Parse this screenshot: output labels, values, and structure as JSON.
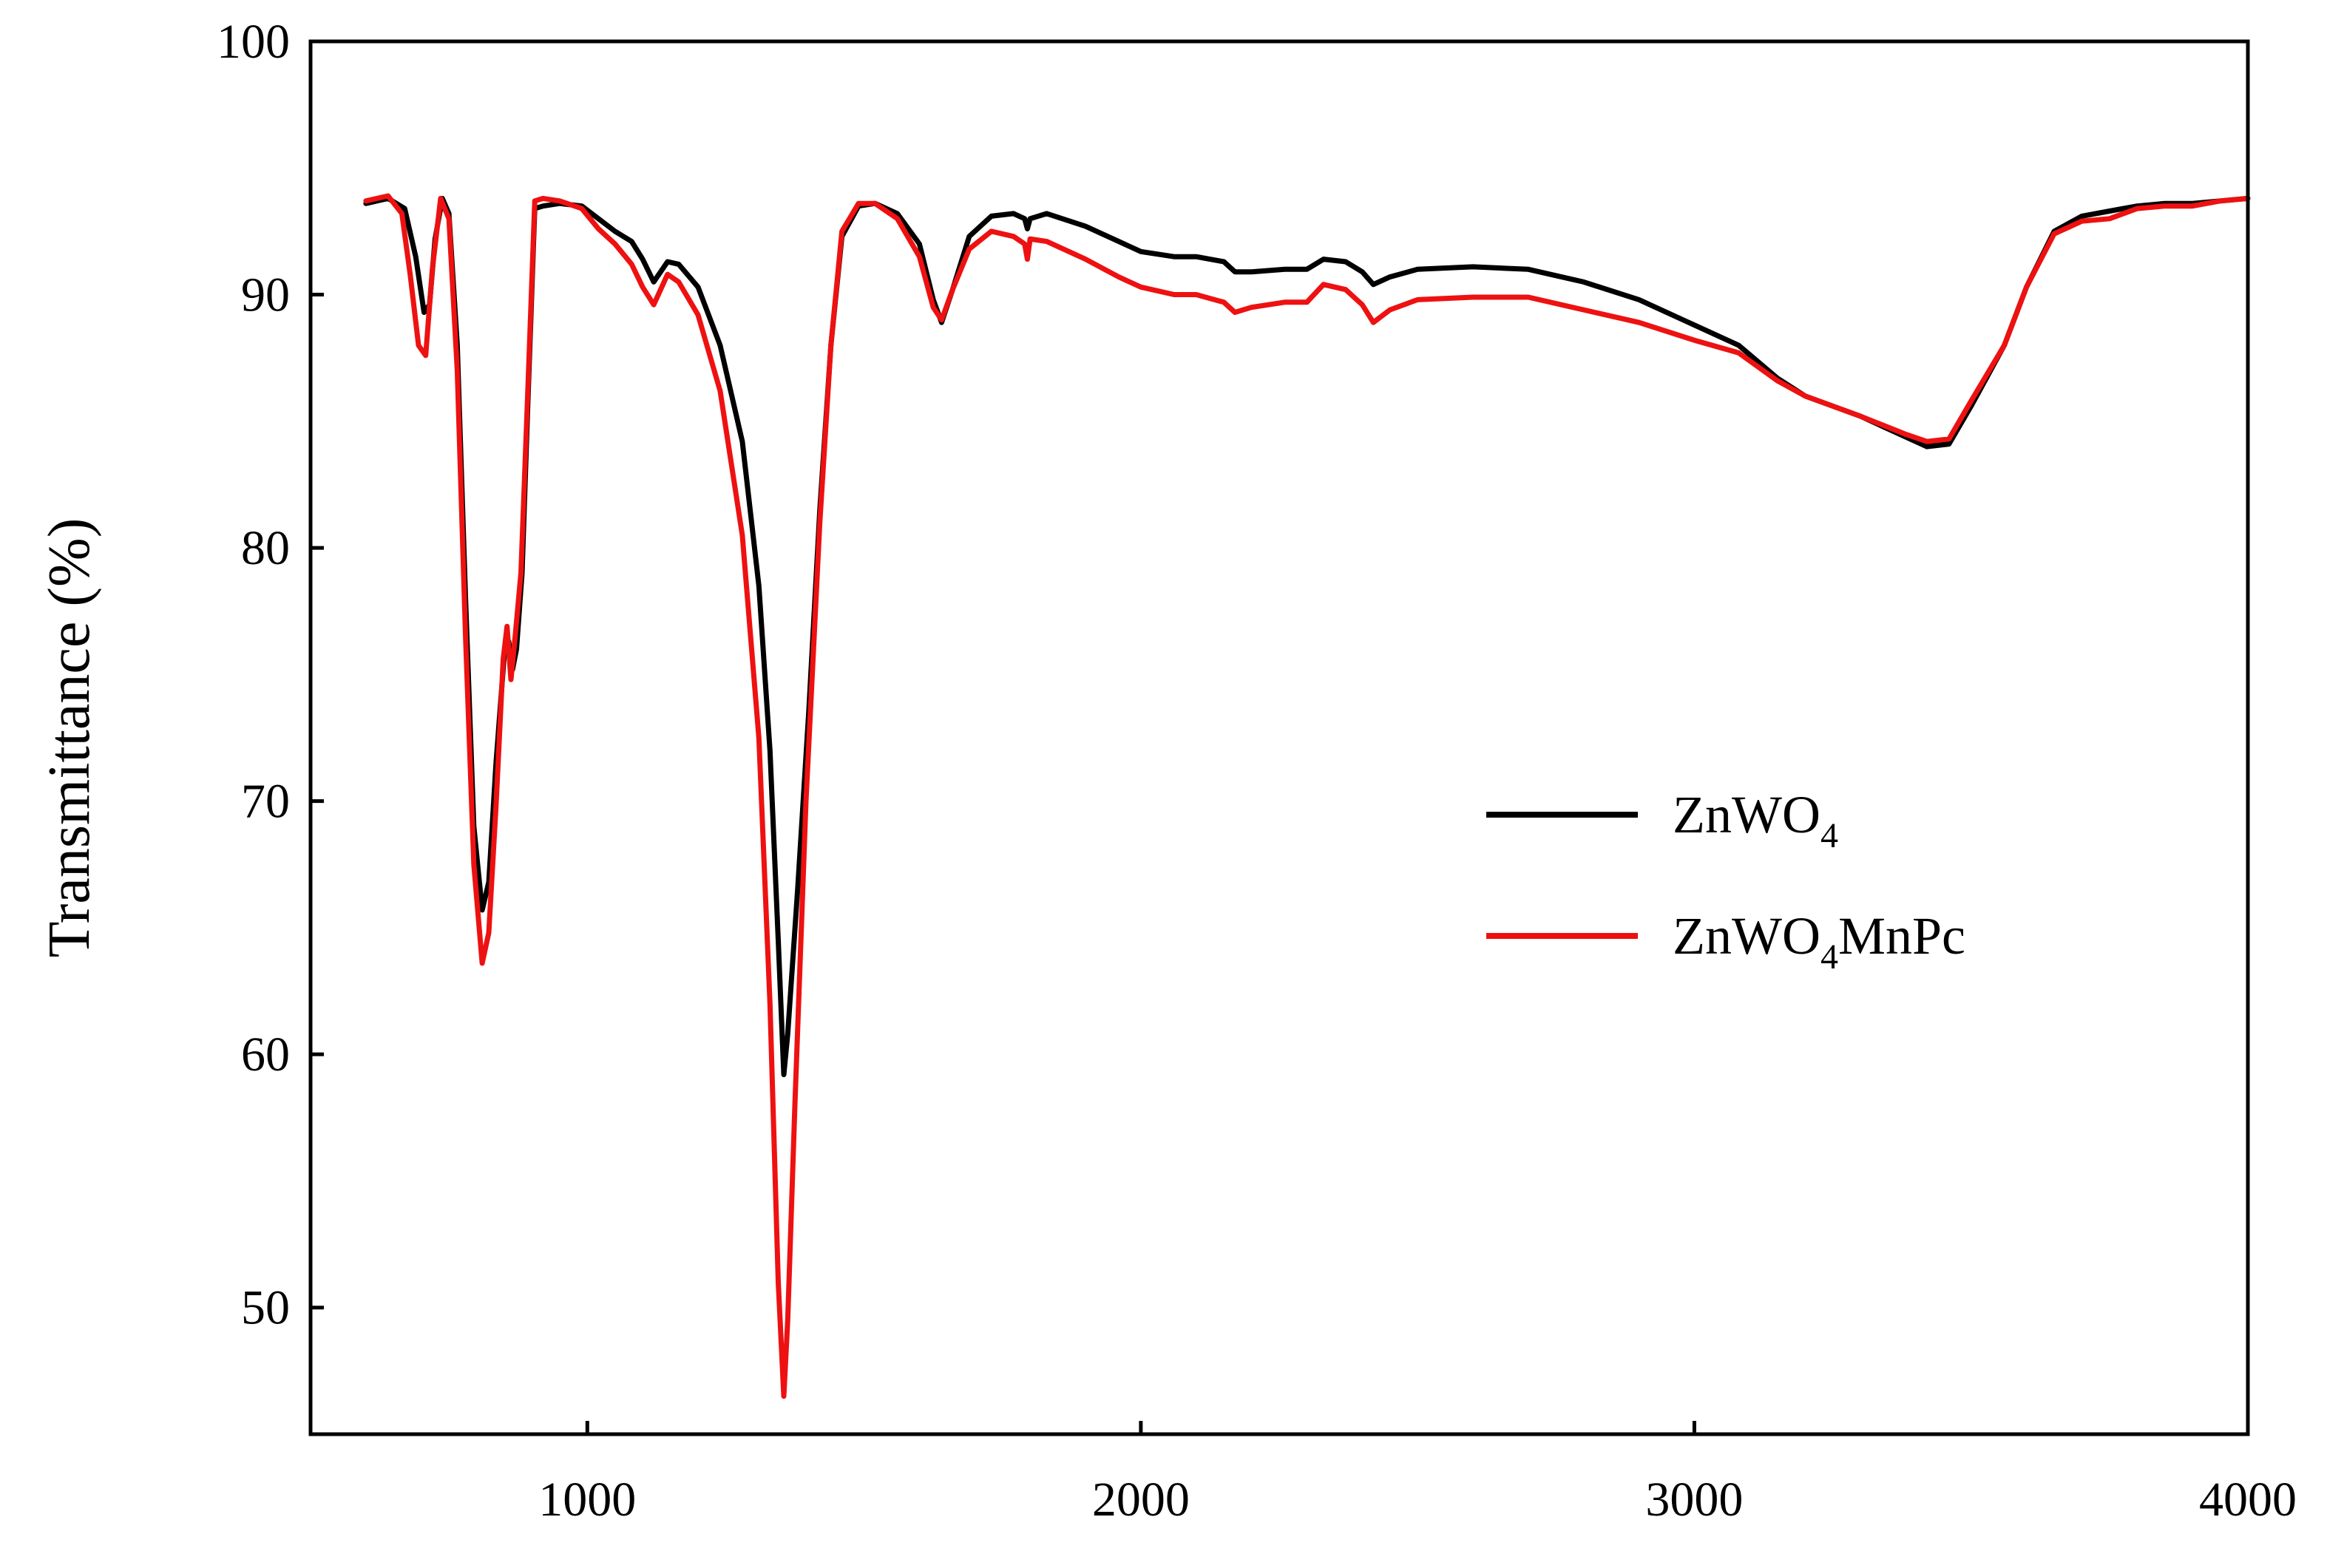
{
  "chart_data": {
    "type": "line",
    "title": "",
    "xlabel": "",
    "ylabel": "Transmittance (%)",
    "xlim": [
      500,
      4000
    ],
    "ylim": [
      45,
      100
    ],
    "x_ticks": [
      1000,
      2000,
      3000,
      4000
    ],
    "y_ticks": [
      50,
      60,
      70,
      80,
      90,
      100
    ],
    "x_tick_labels": [
      "1000",
      "2000",
      "3000",
      "4000"
    ],
    "y_tick_labels": [
      "50",
      "60",
      "70",
      "80",
      "90",
      "100"
    ],
    "grid": false,
    "legend_position": "right-middle",
    "series": [
      {
        "name": "ZnWO4",
        "legend_main": "ZnWO",
        "legend_sub": "4",
        "legend_rest": "",
        "color": "#000000",
        "points": [
          [
            600,
            93.6
          ],
          [
            640,
            93.8
          ],
          [
            670,
            93.4
          ],
          [
            690,
            91.5
          ],
          [
            705,
            89.3
          ],
          [
            715,
            89.6
          ],
          [
            725,
            92.2
          ],
          [
            738,
            93.8
          ],
          [
            750,
            93.2
          ],
          [
            765,
            88.0
          ],
          [
            780,
            78.0
          ],
          [
            795,
            69.0
          ],
          [
            810,
            65.7
          ],
          [
            822,
            66.8
          ],
          [
            835,
            71.5
          ],
          [
            850,
            75.8
          ],
          [
            858,
            76.3
          ],
          [
            865,
            75.2
          ],
          [
            872,
            76.0
          ],
          [
            882,
            79.0
          ],
          [
            893,
            86.0
          ],
          [
            905,
            93.4
          ],
          [
            920,
            93.5
          ],
          [
            950,
            93.6
          ],
          [
            990,
            93.5
          ],
          [
            1020,
            93.0
          ],
          [
            1050,
            92.5
          ],
          [
            1080,
            92.1
          ],
          [
            1100,
            91.4
          ],
          [
            1120,
            90.5
          ],
          [
            1145,
            91.3
          ],
          [
            1165,
            91.2
          ],
          [
            1200,
            90.3
          ],
          [
            1240,
            88.0
          ],
          [
            1280,
            84.2
          ],
          [
            1310,
            78.5
          ],
          [
            1330,
            72.0
          ],
          [
            1345,
            64.5
          ],
          [
            1355,
            59.2
          ],
          [
            1362,
            60.8
          ],
          [
            1380,
            66.5
          ],
          [
            1400,
            73.5
          ],
          [
            1420,
            81.5
          ],
          [
            1440,
            88.0
          ],
          [
            1460,
            92.3
          ],
          [
            1490,
            93.5
          ],
          [
            1520,
            93.6
          ],
          [
            1560,
            93.2
          ],
          [
            1600,
            92.0
          ],
          [
            1625,
            89.8
          ],
          [
            1640,
            88.9
          ],
          [
            1660,
            90.2
          ],
          [
            1690,
            92.3
          ],
          [
            1730,
            93.1
          ],
          [
            1770,
            93.2
          ],
          [
            1790,
            93.0
          ],
          [
            1795,
            92.6
          ],
          [
            1800,
            93.0
          ],
          [
            1830,
            93.2
          ],
          [
            1900,
            92.7
          ],
          [
            1960,
            92.1
          ],
          [
            2000,
            91.7
          ],
          [
            2060,
            91.5
          ],
          [
            2100,
            91.5
          ],
          [
            2150,
            91.3
          ],
          [
            2170,
            90.9
          ],
          [
            2200,
            90.9
          ],
          [
            2260,
            91.0
          ],
          [
            2300,
            91.0
          ],
          [
            2330,
            91.4
          ],
          [
            2370,
            91.3
          ],
          [
            2400,
            90.9
          ],
          [
            2420,
            90.4
          ],
          [
            2450,
            90.7
          ],
          [
            2500,
            91.0
          ],
          [
            2600,
            91.1
          ],
          [
            2700,
            91.0
          ],
          [
            2800,
            90.5
          ],
          [
            2900,
            89.8
          ],
          [
            3000,
            88.8
          ],
          [
            3080,
            88.0
          ],
          [
            3150,
            86.7
          ],
          [
            3200,
            86.0
          ],
          [
            3300,
            85.2
          ],
          [
            3380,
            84.4
          ],
          [
            3420,
            84.0
          ],
          [
            3460,
            84.1
          ],
          [
            3500,
            85.6
          ],
          [
            3560,
            88.0
          ],
          [
            3600,
            90.3
          ],
          [
            3650,
            92.5
          ],
          [
            3700,
            93.1
          ],
          [
            3750,
            93.3
          ],
          [
            3800,
            93.5
          ],
          [
            3850,
            93.6
          ],
          [
            3900,
            93.6
          ],
          [
            3950,
            93.7
          ],
          [
            4000,
            93.8
          ]
        ]
      },
      {
        "name": "ZnWO4MnPc",
        "legend_main": "ZnWO",
        "legend_sub": "4",
        "legend_rest": "MnPc",
        "color": "#ee1111",
        "points": [
          [
            600,
            93.7
          ],
          [
            640,
            93.9
          ],
          [
            665,
            93.2
          ],
          [
            680,
            90.8
          ],
          [
            695,
            88.0
          ],
          [
            708,
            87.6
          ],
          [
            720,
            91.0
          ],
          [
            735,
            93.8
          ],
          [
            750,
            93.0
          ],
          [
            765,
            87.0
          ],
          [
            780,
            76.5
          ],
          [
            795,
            67.5
          ],
          [
            810,
            63.6
          ],
          [
            822,
            64.8
          ],
          [
            835,
            69.8
          ],
          [
            848,
            75.6
          ],
          [
            855,
            76.9
          ],
          [
            862,
            74.8
          ],
          [
            870,
            76.6
          ],
          [
            880,
            79.0
          ],
          [
            893,
            86.5
          ],
          [
            905,
            93.7
          ],
          [
            920,
            93.8
          ],
          [
            950,
            93.7
          ],
          [
            990,
            93.4
          ],
          [
            1020,
            92.6
          ],
          [
            1050,
            92.0
          ],
          [
            1080,
            91.2
          ],
          [
            1100,
            90.3
          ],
          [
            1120,
            89.6
          ],
          [
            1145,
            90.8
          ],
          [
            1165,
            90.5
          ],
          [
            1200,
            89.2
          ],
          [
            1240,
            86.2
          ],
          [
            1280,
            80.5
          ],
          [
            1310,
            72.5
          ],
          [
            1330,
            62.0
          ],
          [
            1345,
            51.0
          ],
          [
            1355,
            46.5
          ],
          [
            1362,
            49.5
          ],
          [
            1375,
            58.0
          ],
          [
            1395,
            70.0
          ],
          [
            1420,
            81.0
          ],
          [
            1440,
            88.0
          ],
          [
            1460,
            92.5
          ],
          [
            1490,
            93.6
          ],
          [
            1520,
            93.6
          ],
          [
            1560,
            93.0
          ],
          [
            1600,
            91.5
          ],
          [
            1625,
            89.5
          ],
          [
            1640,
            89.0
          ],
          [
            1660,
            90.2
          ],
          [
            1690,
            91.8
          ],
          [
            1730,
            92.5
          ],
          [
            1770,
            92.3
          ],
          [
            1790,
            92.0
          ],
          [
            1795,
            91.4
          ],
          [
            1800,
            92.2
          ],
          [
            1830,
            92.1
          ],
          [
            1900,
            91.4
          ],
          [
            1960,
            90.7
          ],
          [
            2000,
            90.3
          ],
          [
            2060,
            90.0
          ],
          [
            2100,
            90.0
          ],
          [
            2150,
            89.7
          ],
          [
            2170,
            89.3
          ],
          [
            2200,
            89.5
          ],
          [
            2260,
            89.7
          ],
          [
            2300,
            89.7
          ],
          [
            2330,
            90.4
          ],
          [
            2370,
            90.2
          ],
          [
            2400,
            89.6
          ],
          [
            2420,
            88.9
          ],
          [
            2450,
            89.4
          ],
          [
            2500,
            89.8
          ],
          [
            2600,
            89.9
          ],
          [
            2700,
            89.9
          ],
          [
            2800,
            89.4
          ],
          [
            2900,
            88.9
          ],
          [
            3000,
            88.2
          ],
          [
            3080,
            87.7
          ],
          [
            3150,
            86.6
          ],
          [
            3200,
            86.0
          ],
          [
            3300,
            85.2
          ],
          [
            3380,
            84.5
          ],
          [
            3420,
            84.2
          ],
          [
            3460,
            84.3
          ],
          [
            3500,
            85.8
          ],
          [
            3560,
            88.0
          ],
          [
            3600,
            90.3
          ],
          [
            3650,
            92.4
          ],
          [
            3700,
            92.9
          ],
          [
            3750,
            93.0
          ],
          [
            3800,
            93.4
          ],
          [
            3850,
            93.5
          ],
          [
            3900,
            93.5
          ],
          [
            3950,
            93.7
          ],
          [
            4000,
            93.8
          ]
        ]
      }
    ]
  }
}
